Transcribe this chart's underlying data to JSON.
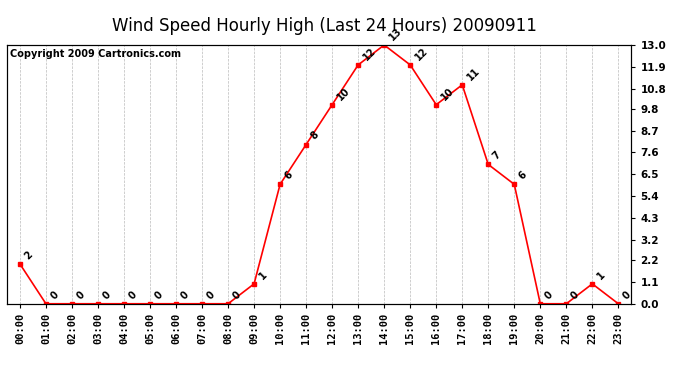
{
  "title": "Wind Speed Hourly High (Last 24 Hours) 20090911",
  "copyright": "Copyright 2009 Cartronics.com",
  "hours": [
    "00:00",
    "01:00",
    "02:00",
    "03:00",
    "04:00",
    "05:00",
    "06:00",
    "07:00",
    "08:00",
    "09:00",
    "10:00",
    "11:00",
    "12:00",
    "13:00",
    "14:00",
    "15:00",
    "16:00",
    "17:00",
    "18:00",
    "19:00",
    "20:00",
    "21:00",
    "22:00",
    "23:00"
  ],
  "values": [
    2,
    0,
    0,
    0,
    0,
    0,
    0,
    0,
    0,
    1,
    6,
    8,
    10,
    12,
    13,
    12,
    10,
    11,
    7,
    6,
    0,
    0,
    1,
    0
  ],
  "ylim": [
    0.0,
    13.0
  ],
  "yticks": [
    0.0,
    1.1,
    2.2,
    3.2,
    4.3,
    5.4,
    6.5,
    7.6,
    8.7,
    9.8,
    10.8,
    11.9,
    13.0
  ],
  "line_color": "#ff0000",
  "marker_color": "#ff0000",
  "bg_color": "#ffffff",
  "grid_color": "#bbbbbb",
  "title_fontsize": 12,
  "copyright_fontsize": 7,
  "tick_fontsize": 7.5,
  "annotation_fontsize": 7
}
